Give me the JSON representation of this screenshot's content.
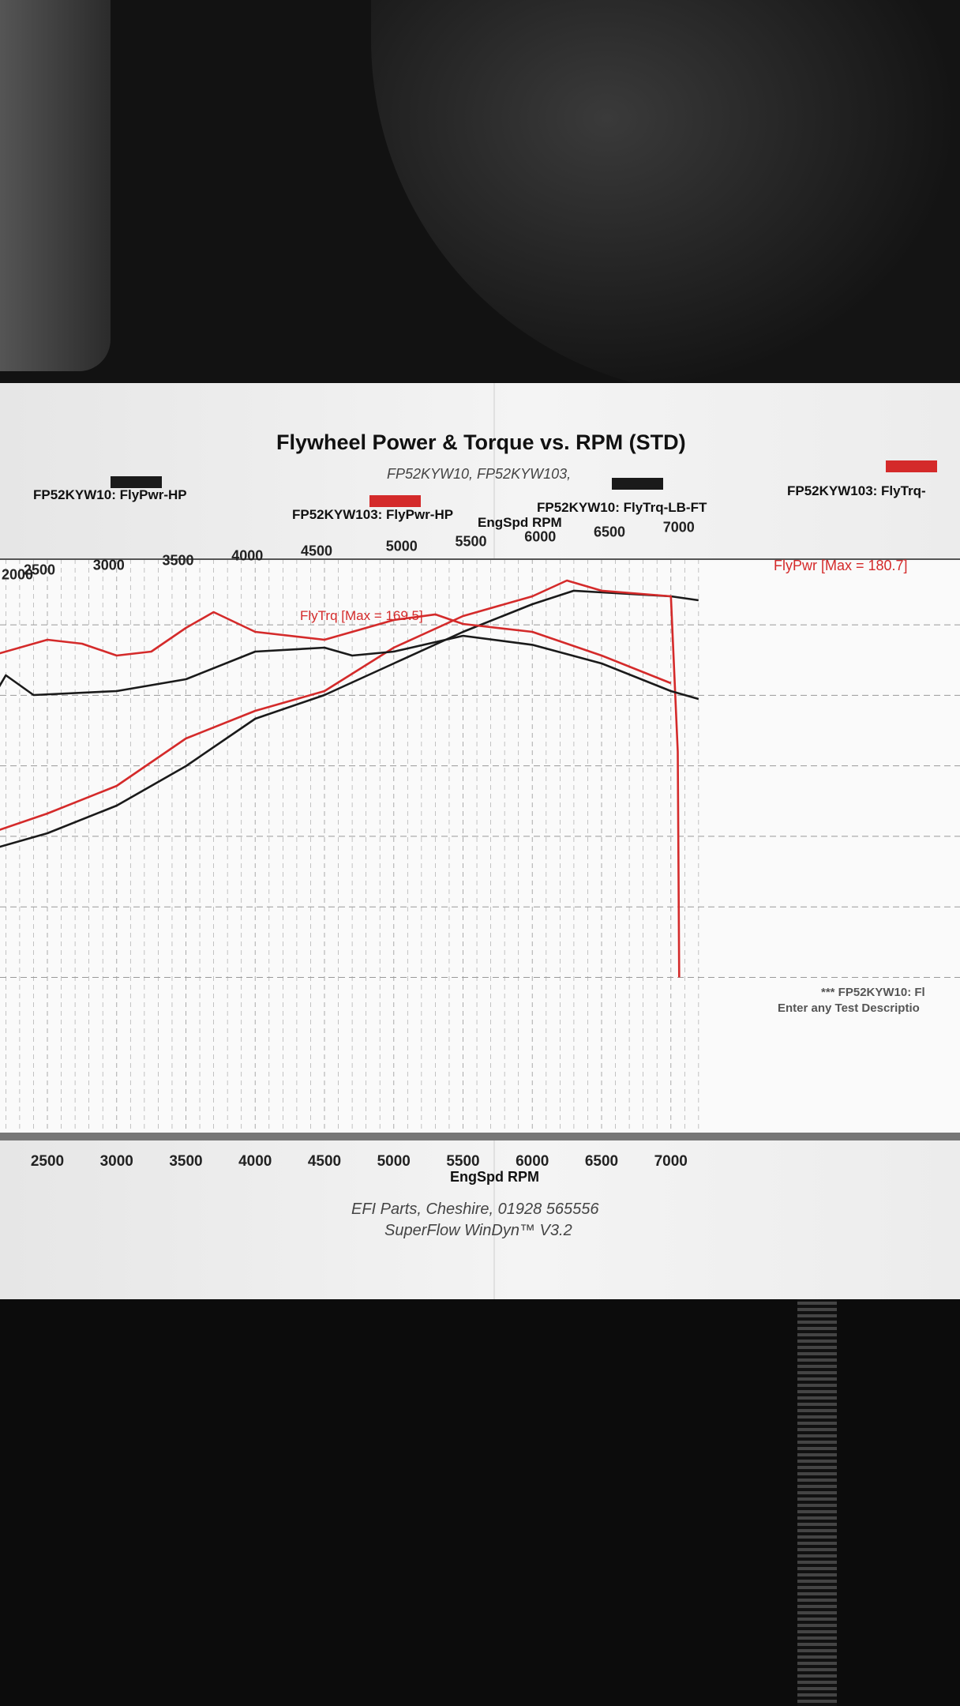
{
  "chart_data": {
    "type": "line",
    "title": "Flywheel Power & Torque vs. RPM (STD)",
    "subtitle": "FP52KYW10, FP52KYW103,",
    "xlabel": "EngSpd RPM",
    "ylabel": "",
    "xlim": [
      2000,
      7200
    ],
    "ylim": [
      40,
      190
    ],
    "x_ticks": [
      "2500",
      "3000",
      "3500",
      "4000",
      "4500",
      "5000",
      "5500",
      "6000",
      "6500",
      "7000"
    ],
    "x_ticks_top": [
      "2000",
      "2500",
      "3000",
      "3500",
      "4000",
      "4500",
      "5000",
      "5500",
      "6000",
      "6500",
      "7000"
    ],
    "grid": true,
    "legend": [
      {
        "label": "FP52KYW10: FlyPwr-HP",
        "color": "#1a1a1a"
      },
      {
        "label": "FP52KYW103: FlyPwr-HP",
        "color": "#d42a2a"
      },
      {
        "label": "FP52KYW10: FlyTrq-LB-FT",
        "color": "#1a1a1a"
      },
      {
        "label": "FP52KYW103: FlyTrq-",
        "color": "#d42a2a"
      }
    ],
    "legend_placement": "top",
    "annotations": [
      "FlyTrq [Max = 169.5]",
      "FlyPwr [Max = 180.7]"
    ],
    "series": [
      {
        "name": "FP52KYW10: FlyPwr-HP",
        "color": "#1a1a1a",
        "x": [
          2000,
          2500,
          3000,
          3500,
          4000,
          4500,
          5000,
          5500,
          6000,
          6300,
          6500,
          7000,
          7200
        ],
        "y": [
          84.1,
          91.1,
          100.9,
          114.9,
          131.7,
          140.1,
          151.3,
          162.5,
          172.3,
          177.1,
          176.5,
          175.1,
          173.7
        ]
      },
      {
        "name": "FP52KYW103: FlyPwr-HP",
        "color": "#d42a2a",
        "x": [
          2000,
          2500,
          3000,
          3500,
          4000,
          4500,
          5000,
          5500,
          6000,
          6250,
          6500,
          7000,
          7050,
          7060
        ],
        "y": [
          89.7,
          98.1,
          107.9,
          124.7,
          134.5,
          141.5,
          156.9,
          168.1,
          175.1,
          180.7,
          177.1,
          175.1,
          120,
          40
        ]
      },
      {
        "name": "FP52KYW10: FlyTrq-LB-FT",
        "color": "#1a1a1a",
        "x": [
          2000,
          2200,
          2400,
          3000,
          3500,
          4000,
          4500,
          4700,
          5000,
          5500,
          6000,
          6500,
          7000,
          7200
        ],
        "y": [
          130.3,
          147.1,
          140.1,
          141.5,
          145.7,
          155.5,
          156.9,
          154.1,
          155.5,
          161.1,
          157.9,
          151.3,
          141.5,
          138.7
        ]
      },
      {
        "name": "FP52KYW103: FlyTrq-",
        "color": "#d42a2a",
        "x": [
          2000,
          2500,
          2750,
          3000,
          3250,
          3500,
          3700,
          4000,
          4500,
          5000,
          5300,
          5500,
          6000,
          6500,
          7000
        ],
        "y": [
          152.7,
          159.7,
          158.3,
          154.1,
          155.5,
          163.9,
          169.5,
          162.5,
          159.7,
          166.7,
          168.7,
          165.3,
          162.5,
          154.1,
          144.3
        ]
      }
    ]
  },
  "notes": [
    "*** FP52KYW10: Fl",
    "Enter any Test Descriptio"
  ],
  "footer": [
    "EFI Parts, Cheshire, 01928 565556",
    "SuperFlow WinDyn™ V3.2"
  ]
}
